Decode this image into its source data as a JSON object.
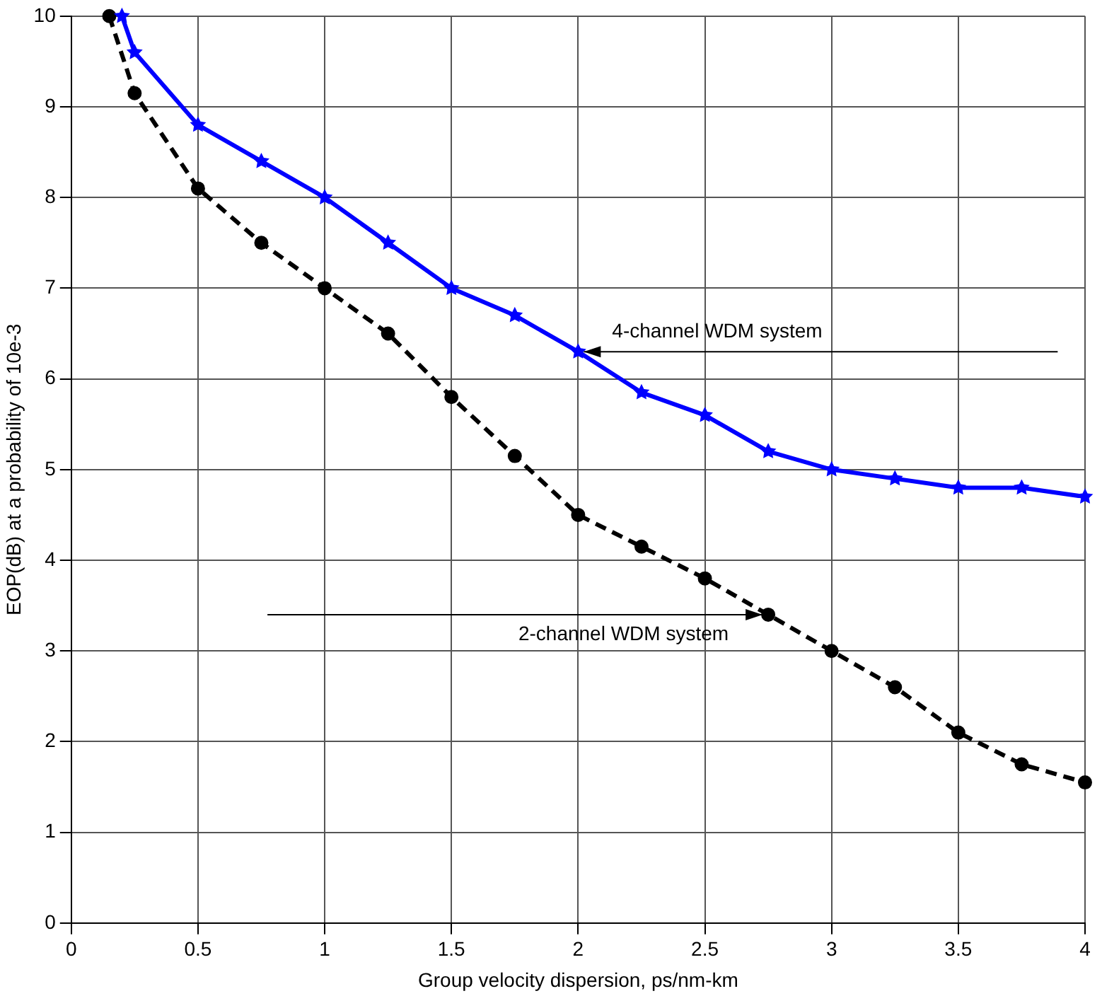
{
  "chart_data": {
    "type": "line",
    "xlabel": "Group velocity dispersion, ps/nm-km",
    "ylabel": "EOP(dB) at a probability of 10e-3",
    "xlim": [
      0,
      4
    ],
    "xticks": [
      0,
      0.5,
      1,
      1.5,
      2,
      2.5,
      3,
      3.5,
      4
    ],
    "ylim": [
      0,
      10
    ],
    "yticks": [
      0,
      1,
      2,
      3,
      4,
      5,
      6,
      7,
      8,
      9,
      10
    ],
    "grid": true,
    "series": [
      {
        "color": "#0000ff",
        "marker": "star",
        "line_style": "solid",
        "x": [
          0.2,
          0.25,
          0.5,
          0.75,
          1,
          1.25,
          1.5,
          1.75,
          2,
          2.25,
          2.5,
          2.75,
          3,
          3.25,
          3.5,
          3.75,
          4
        ],
        "values": [
          10,
          9.6,
          8.8,
          8.4,
          8.0,
          7.5,
          7.0,
          6.7,
          6.3,
          5.85,
          5.6,
          5.2,
          5.0,
          4.9,
          4.8,
          4.8,
          4.7
        ]
      },
      {
        "color": "#000000",
        "marker": "circle",
        "line_style": "dashed",
        "x": [
          0.15,
          0.25,
          0.5,
          0.75,
          1,
          1.25,
          1.5,
          1.75,
          2,
          2.25,
          2.5,
          2.75,
          3,
          3.25,
          3.5,
          3.75,
          4
        ],
        "values": [
          10,
          9.15,
          8.1,
          7.5,
          7.0,
          6.5,
          5.8,
          5.15,
          4.5,
          4.15,
          3.8,
          3.4,
          3.0,
          2.6,
          2.1,
          1.75,
          1.55
        ]
      }
    ],
    "annotations": [
      {
        "text": "4-channel WDM system",
        "x": 2,
        "y": 6.3
      },
      {
        "text": "2-channel WDM system",
        "x": 2.75,
        "y": 3.4
      }
    ]
  }
}
